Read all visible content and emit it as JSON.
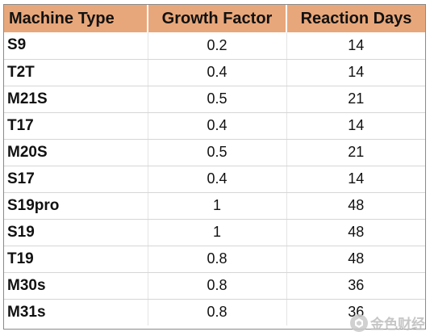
{
  "table": {
    "headers": [
      "Machine Type",
      "Growth Factor",
      "Reaction Days"
    ],
    "rows": [
      {
        "type": "S9",
        "growth": "0.2",
        "days": "14"
      },
      {
        "type": "T2T",
        "growth": "0.4",
        "days": "14"
      },
      {
        "type": "M21S",
        "growth": "0.5",
        "days": "21"
      },
      {
        "type": "T17",
        "growth": "0.4",
        "days": "14"
      },
      {
        "type": "M20S",
        "growth": "0.5",
        "days": "21"
      },
      {
        "type": "S17",
        "growth": "0.4",
        "days": "14"
      },
      {
        "type": "S19pro",
        "growth": "1",
        "days": "48"
      },
      {
        "type": "S19",
        "growth": "1",
        "days": "48"
      },
      {
        "type": "T19",
        "growth": "0.8",
        "days": "48"
      },
      {
        "type": "M30s",
        "growth": "0.8",
        "days": "36"
      },
      {
        "type": "M31s",
        "growth": "0.8",
        "days": "36"
      }
    ]
  },
  "watermark": {
    "text": "金色财经",
    "icon": "golden-finance-logo-icon"
  },
  "colors": {
    "header_bg": "#e8a77a",
    "row_divider": "#d6d6d6"
  }
}
